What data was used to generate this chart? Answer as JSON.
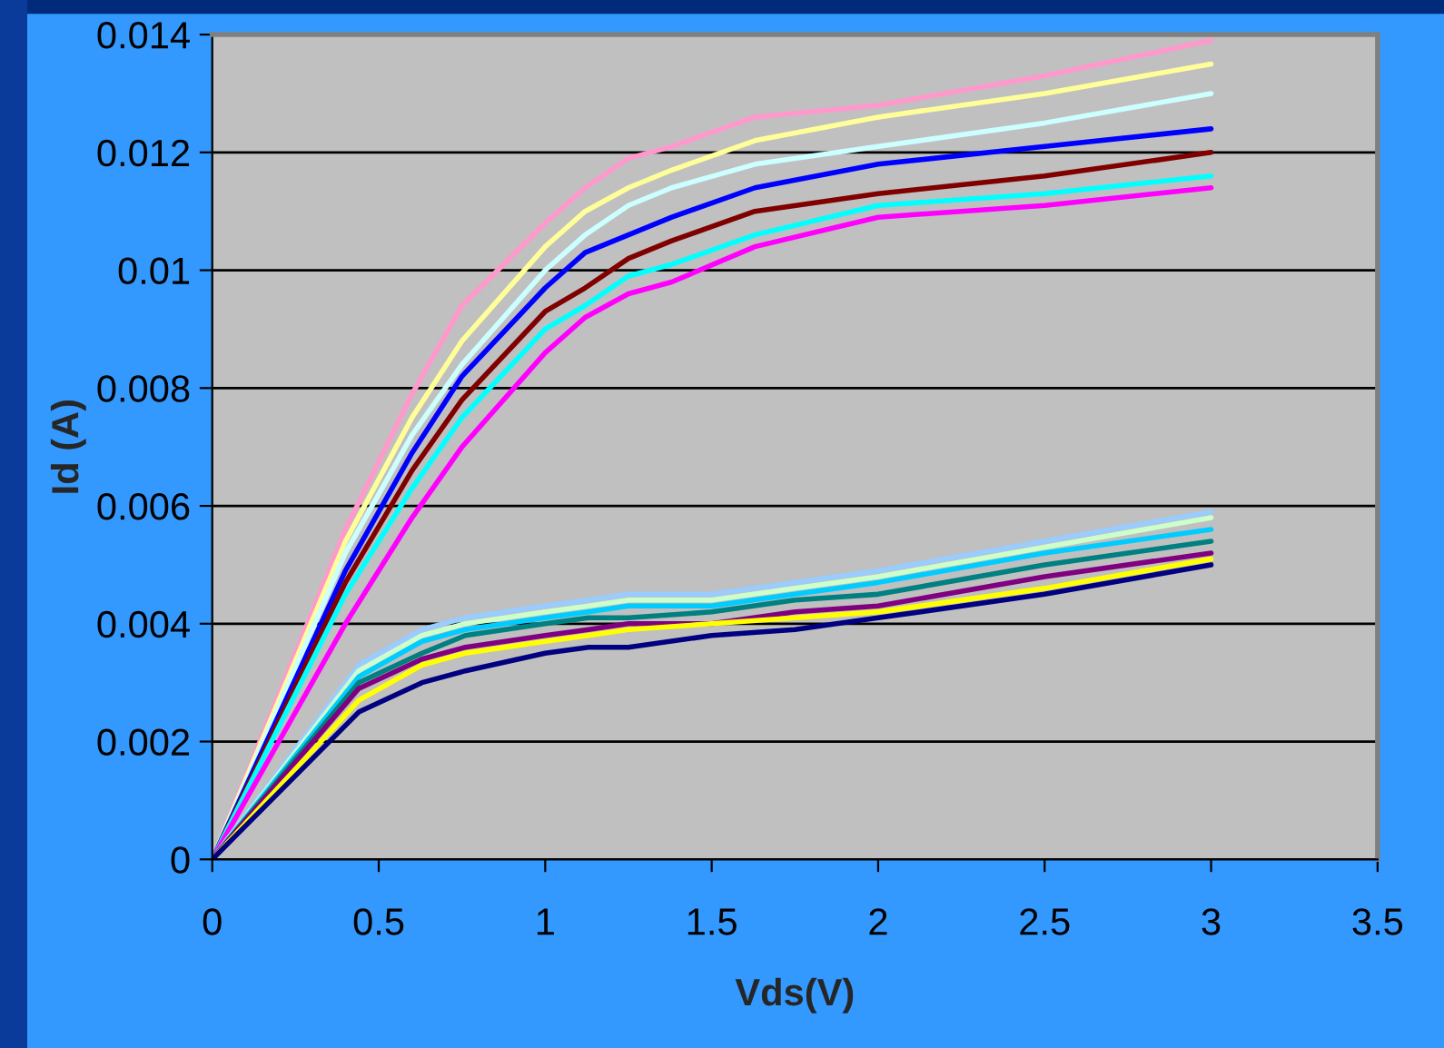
{
  "chart_data": {
    "type": "line",
    "xlabel": "Vds(V)",
    "ylabel": "Id (A)",
    "xlim": [
      0,
      3.5
    ],
    "xticks": [
      0,
      0.5,
      1,
      1.5,
      2,
      2.5,
      3,
      3.5
    ],
    "ylim": [
      0,
      0.014
    ],
    "yticks": [
      0,
      0.002,
      0.004,
      0.006,
      0.008,
      0.01,
      0.012,
      0.014
    ],
    "grid": "y",
    "marker": "none",
    "line_style": "solid",
    "series": [
      {
        "color": "#ff99cc",
        "x": [
          0,
          0.4,
          0.6,
          0.75,
          1.0,
          1.12,
          1.25,
          1.38,
          1.63,
          2.0,
          2.5,
          3.0
        ],
        "values": [
          0,
          0.0056,
          0.0079,
          0.0094,
          0.0108,
          0.0114,
          0.0119,
          0.0121,
          0.0126,
          0.0128,
          0.0133,
          0.0139
        ]
      },
      {
        "color": "#ffff99",
        "x": [
          0,
          0.4,
          0.6,
          0.75,
          1.0,
          1.12,
          1.25,
          1.38,
          1.63,
          2.0,
          2.5,
          3.0
        ],
        "values": [
          0,
          0.0054,
          0.0075,
          0.0088,
          0.0104,
          0.011,
          0.0114,
          0.0117,
          0.0122,
          0.0126,
          0.013,
          0.0135
        ]
      },
      {
        "color": "#ccffff",
        "x": [
          0,
          0.4,
          0.6,
          0.75,
          1.0,
          1.12,
          1.25,
          1.38,
          1.63,
          2.0,
          2.5,
          3.0
        ],
        "values": [
          0,
          0.0052,
          0.0072,
          0.0084,
          0.01,
          0.0106,
          0.0111,
          0.0114,
          0.0118,
          0.0121,
          0.0125,
          0.013
        ]
      },
      {
        "color": "#0000ff",
        "x": [
          0,
          0.4,
          0.6,
          0.75,
          1.0,
          1.12,
          1.25,
          1.38,
          1.63,
          2.0,
          2.5,
          3.0
        ],
        "values": [
          0,
          0.0049,
          0.0069,
          0.0082,
          0.0097,
          0.0103,
          0.0106,
          0.0109,
          0.0114,
          0.0118,
          0.0121,
          0.0124
        ]
      },
      {
        "color": "#800000",
        "x": [
          0,
          0.4,
          0.6,
          0.75,
          1.0,
          1.12,
          1.25,
          1.38,
          1.63,
          2.0,
          2.5,
          3.0
        ],
        "values": [
          0,
          0.0047,
          0.0066,
          0.0078,
          0.0093,
          0.0097,
          0.0102,
          0.0105,
          0.011,
          0.0113,
          0.0116,
          0.012
        ]
      },
      {
        "color": "#00ffff",
        "x": [
          0,
          0.4,
          0.6,
          0.75,
          1.0,
          1.12,
          1.25,
          1.38,
          1.63,
          2.0,
          2.5,
          3.0
        ],
        "values": [
          0,
          0.0045,
          0.0063,
          0.0075,
          0.009,
          0.0094,
          0.0099,
          0.0101,
          0.0106,
          0.0111,
          0.0113,
          0.0116
        ]
      },
      {
        "color": "#ff00ff",
        "x": [
          0,
          0.4,
          0.6,
          0.75,
          1.0,
          1.12,
          1.25,
          1.38,
          1.63,
          2.0,
          2.5,
          3.0
        ],
        "values": [
          0,
          0.004,
          0.0058,
          0.007,
          0.0086,
          0.0092,
          0.0096,
          0.0098,
          0.0104,
          0.0109,
          0.0111,
          0.0114
        ]
      },
      {
        "color": "#99ccff",
        "x": [
          0,
          0.44,
          0.63,
          0.76,
          1.0,
          1.13,
          1.25,
          1.5,
          1.75,
          2.0,
          2.5,
          3.0
        ],
        "values": [
          0,
          0.0033,
          0.0039,
          0.0041,
          0.0043,
          0.0044,
          0.0045,
          0.0045,
          0.0047,
          0.0049,
          0.0054,
          0.0059
        ]
      },
      {
        "color": "#ccffcc",
        "x": [
          0,
          0.44,
          0.63,
          0.76,
          1.0,
          1.13,
          1.25,
          1.5,
          1.75,
          2.0,
          2.5,
          3.0
        ],
        "values": [
          0,
          0.0032,
          0.0038,
          0.004,
          0.0042,
          0.0043,
          0.0044,
          0.0044,
          0.0046,
          0.0048,
          0.0053,
          0.0058
        ]
      },
      {
        "color": "#00ccff",
        "x": [
          0,
          0.44,
          0.63,
          0.76,
          1.0,
          1.13,
          1.25,
          1.5,
          1.75,
          2.0,
          2.5,
          3.0
        ],
        "values": [
          0,
          0.0031,
          0.0037,
          0.0039,
          0.0041,
          0.0042,
          0.0043,
          0.0043,
          0.0045,
          0.0047,
          0.0052,
          0.0056
        ]
      },
      {
        "color": "#008080",
        "x": [
          0,
          0.44,
          0.63,
          0.76,
          1.0,
          1.13,
          1.25,
          1.5,
          1.75,
          2.0,
          2.5,
          3.0
        ],
        "values": [
          0,
          0.003,
          0.0035,
          0.0038,
          0.004,
          0.0041,
          0.0041,
          0.0042,
          0.0044,
          0.0045,
          0.005,
          0.0054
        ]
      },
      {
        "color": "#800080",
        "x": [
          0,
          0.44,
          0.63,
          0.76,
          1.0,
          1.13,
          1.25,
          1.5,
          1.75,
          2.0,
          2.5,
          3.0
        ],
        "values": [
          0,
          0.0029,
          0.0034,
          0.0036,
          0.0038,
          0.0039,
          0.004,
          0.004,
          0.0042,
          0.0043,
          0.0048,
          0.0052
        ]
      },
      {
        "color": "#ffff00",
        "x": [
          0,
          0.44,
          0.63,
          0.76,
          1.0,
          1.13,
          1.25,
          1.5,
          1.75,
          2.0,
          2.5,
          3.0
        ],
        "values": [
          0,
          0.0027,
          0.0033,
          0.0035,
          0.0037,
          0.0038,
          0.0039,
          0.004,
          0.0041,
          0.0042,
          0.0046,
          0.0051
        ]
      },
      {
        "color": "#000080",
        "x": [
          0,
          0.44,
          0.63,
          0.76,
          1.0,
          1.13,
          1.25,
          1.5,
          1.75,
          2.0,
          2.5,
          3.0
        ],
        "values": [
          0,
          0.0025,
          0.003,
          0.0032,
          0.0035,
          0.0036,
          0.0036,
          0.0038,
          0.0039,
          0.0041,
          0.0045,
          0.005
        ]
      }
    ]
  }
}
